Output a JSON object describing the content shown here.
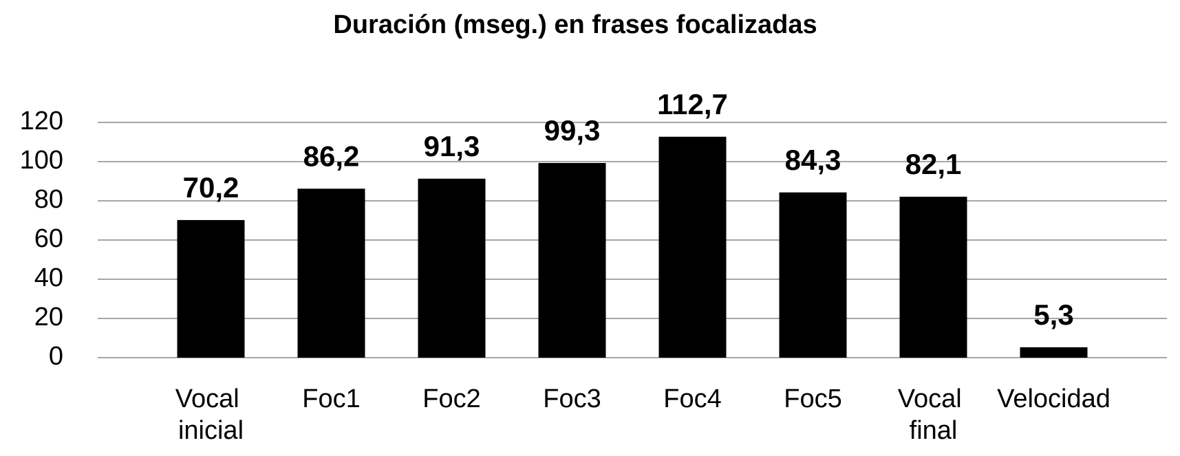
{
  "chart_data": {
    "type": "bar",
    "title": "Duración (mseg.) en frases focalizadas",
    "categories": [
      "Vocal inicial",
      "Foc1",
      "Foc2",
      "Foc3",
      "Foc4",
      "Foc5",
      "Vocal final",
      "Velocidad"
    ],
    "values": [
      70.2,
      86.2,
      91.3,
      99.3,
      112.7,
      84.3,
      82.1,
      5.3
    ],
    "value_labels": [
      "70,2",
      "86,2",
      "91,3",
      "99,3",
      "112,7",
      "84,3",
      "82,1",
      "5,3"
    ],
    "color": "#000000",
    "ylim": [
      0,
      120
    ],
    "yticks": [
      0,
      20,
      40,
      60,
      80,
      100,
      120
    ],
    "grid": true
  }
}
